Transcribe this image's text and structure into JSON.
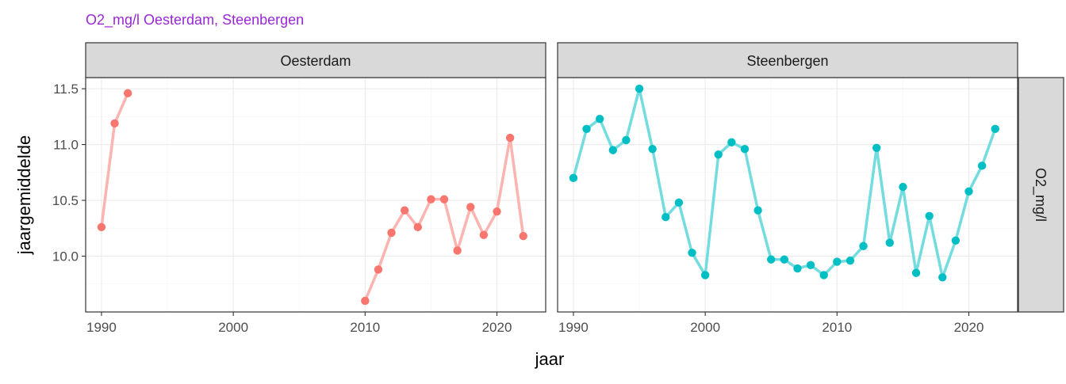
{
  "chart_data": {
    "type": "line",
    "title": "O2_mg/l Oesterdam, Steenbergen",
    "title_color": "#9A27D6",
    "xlabel": "jaar",
    "ylabel": "jaargemiddelde",
    "row_strip": "O2_mg/l",
    "xlim": [
      1988.8,
      2023.7
    ],
    "ylim": [
      9.5,
      11.6
    ],
    "x_ticks": [
      1990,
      2000,
      2010,
      2020
    ],
    "x_tick_labels": [
      "1990",
      "2000",
      "2010",
      "2020"
    ],
    "y_ticks": [
      10.0,
      10.5,
      11.0,
      11.5
    ],
    "y_tick_labels": [
      "10.0",
      "10.5",
      "11.0",
      "11.5"
    ],
    "grid": true,
    "legend": "none",
    "panels": [
      {
        "label": "Oesterdam",
        "color": "#F8766D",
        "segments": [
          {
            "x": [
              1990,
              1991,
              1992
            ],
            "y": [
              10.26,
              11.19,
              11.46
            ]
          },
          {
            "x": [
              2010,
              2011,
              2012,
              2013,
              2014,
              2015,
              2016,
              2017,
              2018,
              2019,
              2020,
              2021,
              2022
            ],
            "y": [
              9.6,
              9.88,
              10.21,
              10.41,
              10.26,
              10.51,
              10.51,
              10.05,
              10.44,
              10.19,
              10.4,
              11.06,
              10.18
            ]
          }
        ]
      },
      {
        "label": "Steenbergen",
        "color": "#00BFC4",
        "segments": [
          {
            "x": [
              1990,
              1991,
              1992,
              1993,
              1994,
              1995,
              1996,
              1997,
              1998,
              1999,
              2000,
              2001,
              2002,
              2003,
              2004,
              2005,
              2006,
              2007,
              2008,
              2009,
              2010,
              2011,
              2012,
              2013,
              2014,
              2015,
              2016,
              2017,
              2018,
              2019,
              2020,
              2021,
              2022
            ],
            "y": [
              10.7,
              11.14,
              11.23,
              10.95,
              11.04,
              11.5,
              10.96,
              10.35,
              10.48,
              10.03,
              9.83,
              10.91,
              11.02,
              10.96,
              10.41,
              9.97,
              9.97,
              9.89,
              9.92,
              9.83,
              9.95,
              9.96,
              10.09,
              10.97,
              10.12,
              10.62,
              9.85,
              10.36,
              9.81,
              10.14,
              10.58,
              10.81,
              11.14
            ]
          }
        ]
      }
    ]
  }
}
